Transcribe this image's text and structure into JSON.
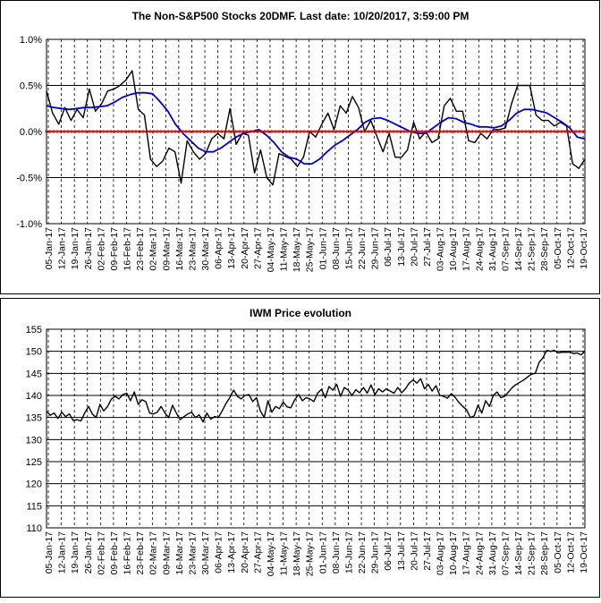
{
  "chart_data": [
    {
      "type": "line",
      "title": "The Non-S&P500 Stocks 20DMF. Last date: 10/20/2017, 3:59:00 PM",
      "xlabel": "",
      "ylabel": "",
      "ylim": [
        -1.0,
        1.0
      ],
      "y_ticks": [
        "1.0%",
        "0.5%",
        "0.0%",
        "-0.5%",
        "-1.0%"
      ],
      "y_tick_values": [
        1.0,
        0.5,
        0.0,
        -0.5,
        -1.0
      ],
      "grid": "horizontal solid, vertical dashed",
      "x_ticks": [
        "05-Jan-17",
        "12-Jan-17",
        "19-Jan-17",
        "26-Jan-17",
        "02-Feb-17",
        "09-Feb-17",
        "16-Feb-17",
        "23-Feb-17",
        "02-Mar-17",
        "09-Mar-17",
        "16-Mar-17",
        "23-Mar-17",
        "30-Mar-17",
        "06-Apr-17",
        "13-Apr-17",
        "20-Apr-17",
        "27-Apr-17",
        "04-May-17",
        "11-May-17",
        "18-May-17",
        "25-May-17",
        "01-Jun-17",
        "08-Jun-17",
        "15-Jun-17",
        "22-Jun-17",
        "29-Jun-17",
        "06-Jul-17",
        "13-Jul-17",
        "20-Jul-17",
        "27-Jul-17",
        "03-Aug-17",
        "10-Aug-17",
        "17-Aug-17",
        "24-Aug-17",
        "31-Aug-17",
        "07-Sep-17",
        "14-Sep-17",
        "21-Sep-17",
        "28-Sep-17",
        "05-Oct-17",
        "12-Oct-17",
        "19-Oct-17"
      ],
      "series": [
        {
          "color": "#000000",
          "values": [
            0.44,
            0.2,
            0.08,
            0.26,
            0.12,
            0.24,
            0.15,
            0.46,
            0.22,
            0.3,
            0.44,
            0.46,
            0.5,
            0.56,
            0.66,
            0.24,
            0.18,
            -0.3,
            -0.38,
            -0.32,
            -0.18,
            -0.22,
            -0.56,
            -0.1,
            -0.22,
            -0.3,
            -0.24,
            -0.08,
            -0.02,
            -0.08,
            0.25,
            -0.14,
            -0.02,
            -0.04,
            -0.45,
            -0.2,
            -0.5,
            -0.58,
            -0.24,
            -0.27,
            -0.3,
            -0.38,
            -0.28,
            0.0,
            -0.06,
            0.08,
            0.2,
            0.02,
            0.28,
            0.2,
            0.38,
            0.26,
            0.0,
            0.12,
            -0.05,
            -0.22,
            -0.02,
            -0.28,
            -0.28,
            -0.2,
            0.1,
            -0.08,
            0.0,
            -0.12,
            -0.08,
            0.28,
            0.36,
            0.22,
            0.22,
            -0.1,
            -0.12,
            -0.02,
            -0.08,
            0.02,
            0.02,
            0.04,
            0.3,
            0.5,
            0.5,
            0.5,
            0.18,
            0.12,
            0.12,
            0.06,
            0.1,
            0.06,
            -0.35,
            -0.4,
            -0.3
          ]
        },
        {
          "color": "#0000cc",
          "values": [
            0.28,
            0.26,
            0.25,
            0.24,
            0.25,
            0.26,
            0.26,
            0.27,
            0.28,
            0.32,
            0.37,
            0.4,
            0.42,
            0.42,
            0.41,
            0.32,
            0.22,
            0.08,
            -0.02,
            -0.1,
            -0.18,
            -0.22,
            -0.22,
            -0.18,
            -0.12,
            -0.06,
            -0.02,
            0.0,
            0.02,
            -0.04,
            -0.12,
            -0.22,
            -0.28,
            -0.3,
            -0.35,
            -0.35,
            -0.3,
            -0.22,
            -0.15,
            -0.1,
            -0.04,
            0.02,
            0.1,
            0.14,
            0.15,
            0.12,
            0.08,
            0.04,
            0.0,
            -0.02,
            -0.02,
            0.04,
            0.1,
            0.15,
            0.14,
            0.1,
            0.08,
            0.05,
            0.05,
            0.04,
            0.06,
            0.12,
            0.2,
            0.24,
            0.24,
            0.22,
            0.2,
            0.15,
            0.1,
            0.04,
            -0.06,
            -0.08
          ]
        },
        {
          "color": "#cc0000",
          "values": [
            0.0,
            0.0
          ]
        }
      ]
    },
    {
      "type": "line",
      "title": "IWM Price evolution",
      "xlabel": "",
      "ylabel": "",
      "ylim": [
        110,
        155
      ],
      "y_ticks": [
        "155",
        "150",
        "145",
        "140",
        "135",
        "130",
        "125",
        "120",
        "115",
        "110"
      ],
      "y_tick_values": [
        155,
        150,
        145,
        140,
        135,
        130,
        125,
        120,
        115,
        110
      ],
      "grid": "horizontal solid, vertical dashed",
      "x_ticks": [
        "05-Jan-17",
        "12-Jan-17",
        "19-Jan-17",
        "26-Jan-17",
        "02-Feb-17",
        "09-Feb-17",
        "16-Feb-17",
        "23-Feb-17",
        "02-Mar-17",
        "09-Mar-17",
        "16-Mar-17",
        "23-Mar-17",
        "30-Mar-17",
        "06-Apr-17",
        "13-Apr-17",
        "20-Apr-17",
        "27-Apr-17",
        "04-May-17",
        "11-May-17",
        "18-May-17",
        "25-May-17",
        "01-Jun-17",
        "08-Jun-17",
        "15-Jun-17",
        "22-Jun-17",
        "29-Jun-17",
        "06-Jul-17",
        "13-Jul-17",
        "20-Jul-17",
        "27-Jul-17",
        "03-Aug-17",
        "10-Aug-17",
        "17-Aug-17",
        "24-Aug-17",
        "31-Aug-17",
        "07-Sep-17",
        "14-Sep-17",
        "21-Sep-17",
        "28-Sep-17",
        "05-Oct-17",
        "12-Oct-17",
        "19-Oct-17"
      ],
      "series": [
        {
          "color": "#000000",
          "values": [
            136.4,
            135.5,
            136.0,
            134.8,
            136.2,
            135.2,
            135.8,
            134.3,
            134.5,
            134.2,
            136.0,
            137.5,
            135.8,
            135.0,
            138.0,
            136.5,
            137.5,
            139.2,
            139.8,
            139.2,
            140.2,
            140.5,
            138.8,
            140.8,
            138.0,
            139.0,
            138.6,
            136.0,
            135.8,
            136.2,
            137.5,
            136.0,
            135.0,
            137.8,
            136.0,
            134.5,
            135.2,
            135.8,
            136.2,
            135.0,
            135.6,
            134.0,
            136.0,
            134.6,
            135.2,
            135.0,
            136.5,
            138.2,
            139.5,
            141.2,
            139.8,
            139.2,
            140.0,
            140.2,
            138.6,
            139.5,
            136.5,
            135.0,
            138.8,
            136.2,
            137.5,
            137.0,
            138.5,
            137.4,
            137.2,
            139.0,
            140.2,
            138.8,
            139.5,
            139.2,
            138.6,
            140.5,
            141.4,
            139.5,
            142.0,
            141.2,
            142.5,
            139.8,
            141.8,
            141.2,
            140.0,
            141.3,
            140.6,
            141.8,
            140.5,
            142.4,
            140.2,
            141.5,
            140.8,
            141.5,
            141.0,
            140.5,
            141.8,
            140.6,
            141.5,
            142.8,
            143.5,
            142.8,
            143.8,
            141.5,
            142.5,
            141.0,
            142.2,
            140.0,
            139.8,
            139.4,
            140.4,
            139.6,
            138.4,
            137.5,
            136.8,
            135.0,
            135.4,
            137.8,
            136.0,
            138.8,
            137.5,
            140.0,
            140.8,
            139.5,
            139.8,
            140.8,
            141.8,
            142.5,
            143.0,
            143.5,
            144.2,
            144.8,
            145.0,
            147.5,
            148.5,
            150.2,
            150.0,
            150.2,
            149.6,
            149.8,
            149.8,
            149.8,
            149.5,
            149.6,
            149.2,
            150.0
          ]
        }
      ]
    }
  ]
}
